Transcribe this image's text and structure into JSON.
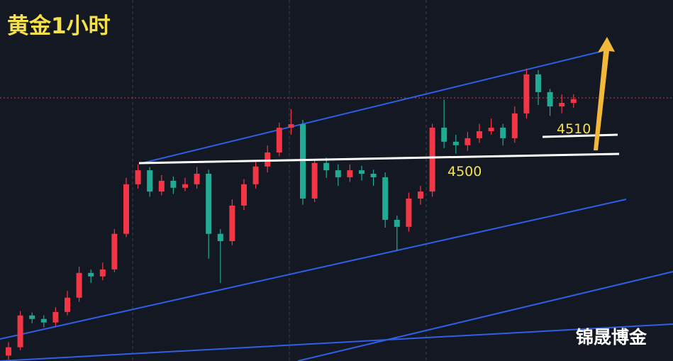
{
  "chart_data": {
    "type": "candlestick",
    "title": "黄金1小时",
    "watermark": "锦晟博金",
    "annotations": [
      4510,
      4500
    ],
    "up_color": "#f23645",
    "down_color": "#22ab94",
    "ylim": [
      4426,
      4560
    ],
    "open": [
      4428.0,
      4431.1,
      4442.9,
      4441.6,
      4440.3,
      4444.2,
      4449.5,
      4458.7,
      4457.4,
      4460.0,
      4473.2,
      4491.6,
      4496.8,
      4488.9,
      4492.9,
      4490.3,
      4491.6,
      4495.5,
      4473.2,
      4470.5,
      4483.7,
      4491.6,
      4498.2,
      4503.4,
      4512.6,
      4513.9,
      4486.3,
      4499.5,
      4496.8,
      4494.2,
      4496.8,
      4495.5,
      4494.2,
      4478.4,
      4475.8,
      4486.3,
      4488.9,
      4512.6,
      4507.4,
      4506.1,
      4508.7,
      4511.3,
      4512.6,
      4508.7,
      4517.9,
      4532.4,
      4525.8,
      4520.5,
      4521.8
    ],
    "high": [
      4433,
      4444.5,
      4444,
      4443,
      4446,
      4452,
      4461,
      4460,
      4462.5,
      4475,
      4494,
      4499,
      4498,
      4495,
      4494.5,
      4494,
      4498,
      4497,
      4475,
      4486,
      4493.5,
      4500,
      4506,
      4514.5,
      4519.5,
      4515.5,
      4501,
      4501.5,
      4499,
      4499,
      4498.5,
      4497,
      4496,
      4480,
      4488.5,
      4491,
      4514,
      4523,
      4510,
      4511,
      4514,
      4516,
      4514,
      4520.5,
      4534.5,
      4534,
      4527,
      4525,
      4525
    ],
    "low": [
      4426.5,
      4430,
      4440,
      4438.5,
      4439,
      4443,
      4448,
      4455,
      4456,
      4459,
      4472,
      4490,
      4487,
      4487.5,
      4488,
      4489,
      4490,
      4464,
      4455,
      4469,
      4482,
      4490,
      4496,
      4502,
      4510,
      4484,
      4485,
      4494,
      4491,
      4492.5,
      4493,
      4491,
      4475.5,
      4467,
      4474,
      4484,
      4487,
      4505,
      4503,
      4504,
      4507,
      4510,
      4506,
      4507,
      4516,
      4521,
      4517,
      4518,
      4520
    ],
    "close": [
      4431.1,
      4442.9,
      4441.6,
      4440.3,
      4444.2,
      4449.5,
      4458.7,
      4457.4,
      4460.0,
      4473.2,
      4491.6,
      4496.8,
      4488.9,
      4492.9,
      4490.3,
      4491.6,
      4495.5,
      4473.2,
      4470.5,
      4483.7,
      4491.6,
      4498.2,
      4503.4,
      4512.6,
      4513.9,
      4486.3,
      4499.5,
      4496.8,
      4494.2,
      4496.8,
      4495.5,
      4494.2,
      4478.4,
      4475.8,
      4486.3,
      4488.9,
      4512.6,
      4507.4,
      4506.1,
      4508.7,
      4511.3,
      4512.6,
      4508.7,
      4517.9,
      4532.4,
      4525.8,
      4520.5,
      4521.8,
      4523.2
    ]
  }
}
